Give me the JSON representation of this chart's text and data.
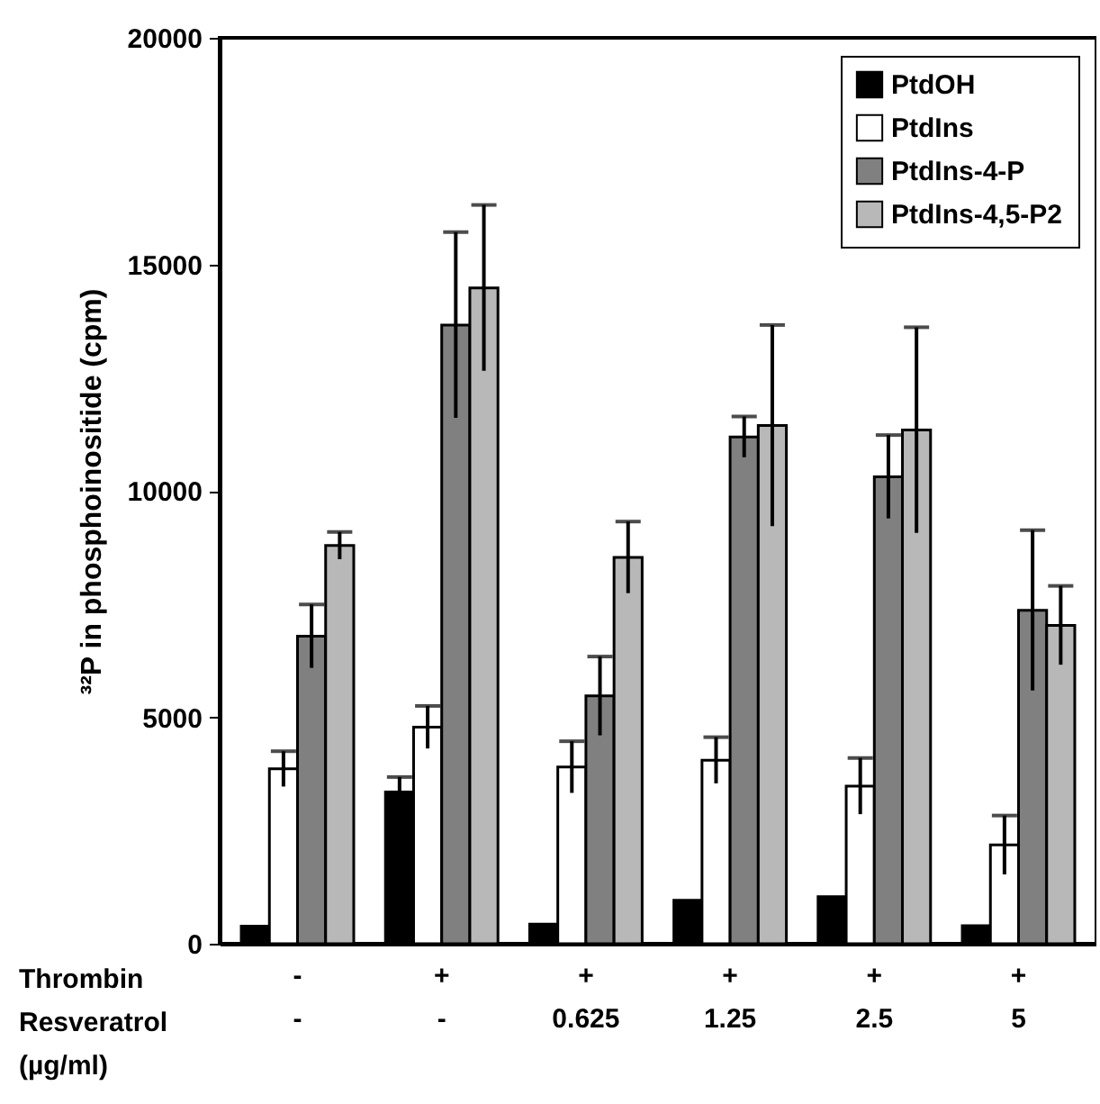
{
  "chart_data": {
    "type": "bar",
    "xlabel": "Thrombin\nResveratrol\n(µg/ml)",
    "ylabel": "³²P in phosphoinositide (cpm)",
    "categories": [
      "-\n-",
      "+\n-",
      "+\n0.625",
      "+\n1.25",
      "+\n2.5",
      "+\n5"
    ],
    "series": [
      {
        "name": "PtdOH",
        "color": "#000000",
        "values": [
          390,
          3350,
          430,
          960,
          1040,
          400
        ],
        "errors": [
          null,
          330,
          null,
          null,
          null,
          null
        ]
      },
      {
        "name": "PtdIns",
        "color": "#ffffff",
        "values": [
          3860,
          4780,
          3900,
          4050,
          3480,
          2180
        ],
        "errors": [
          390,
          470,
          570,
          510,
          620,
          650
        ]
      },
      {
        "name": "PtdIns-4-P",
        "color": "#808080",
        "values": [
          6790,
          13660,
          5470,
          11190,
          10310,
          7360
        ],
        "errors": [
          700,
          2050,
          870,
          450,
          920,
          1770
        ]
      },
      {
        "name": "PtdIns-4,5-P2",
        "color": "#b8b8b8",
        "values": [
          8790,
          14480,
          8530,
          11440,
          11340,
          7030
        ],
        "errors": [
          300,
          1830,
          790,
          2220,
          2270,
          870
        ]
      }
    ],
    "ylim": [
      0,
      20000
    ],
    "yticks": [
      0,
      5000,
      10000,
      15000,
      20000
    ],
    "grid": false,
    "legend": "top right"
  }
}
